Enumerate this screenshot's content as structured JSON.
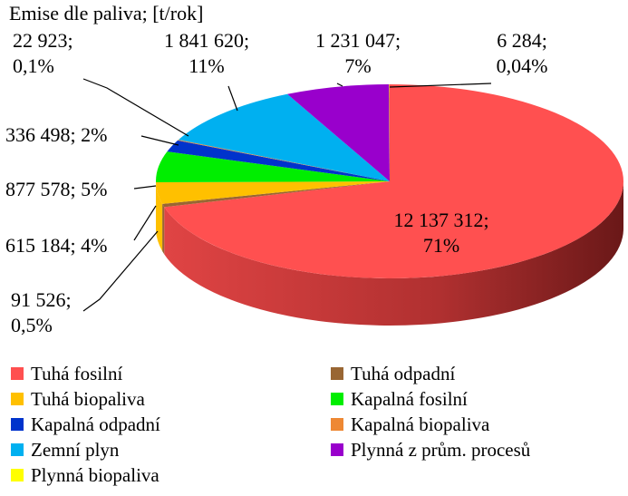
{
  "chart_data": {
    "type": "pie",
    "title": "Emise dle paliva; [t/rok]",
    "categories": [
      "Tuhá fosilní",
      "Tuhá odpadní",
      "Tuhá biopaliva",
      "Kapalná fosilní",
      "Kapalná odpadní",
      "Kapalná biopaliva",
      "Zemní plyn",
      "Plynná z prům. procesů",
      "Plynná biopaliva"
    ],
    "values": [
      12137312,
      91526,
      615184,
      877578,
      336498,
      22923,
      1841620,
      1231047,
      6284
    ],
    "label_values": [
      "12 137 312",
      "91 526",
      "615 184",
      "877 578",
      "336 498",
      "22 923",
      "1 841 620",
      "1 231 047",
      "6 284"
    ],
    "label_percents": [
      "71%",
      "0,5%",
      "4%",
      "5%",
      "2%",
      "0,1%",
      "11%",
      "7%",
      "0,04%"
    ],
    "colors": [
      "#ff5050",
      "#996633",
      "#ffc000",
      "#00ee00",
      "#0033cc",
      "#ee8833",
      "#00b0f0",
      "#9900cc",
      "#ffff00"
    ],
    "legend_position": "bottom",
    "style": "3d"
  }
}
